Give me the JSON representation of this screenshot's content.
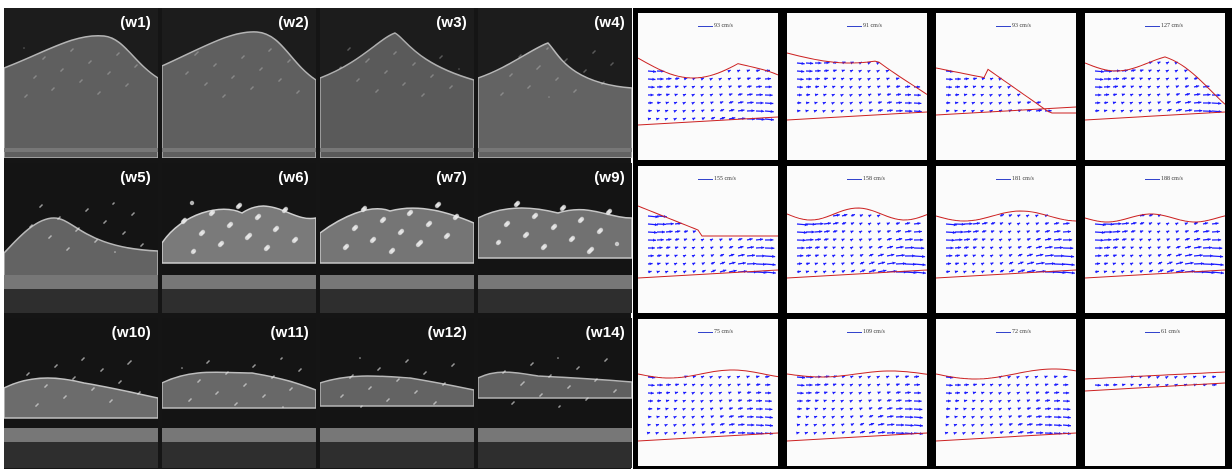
{
  "photo_panels": [
    {
      "label": "(w1)"
    },
    {
      "label": "(w2)"
    },
    {
      "label": "(w3)"
    },
    {
      "label": "(w4)"
    },
    {
      "label": "(w5)"
    },
    {
      "label": "(w6)"
    },
    {
      "label": "(w7)"
    },
    {
      "label": "(w9)"
    },
    {
      "label": "(w10)"
    },
    {
      "label": "(w11)"
    },
    {
      "label": "(w12)"
    },
    {
      "label": "(w14)"
    }
  ],
  "piv_panels": [
    {
      "scale_label": "93 cm/s"
    },
    {
      "scale_label": "91 cm/s"
    },
    {
      "scale_label": "93 cm/s"
    },
    {
      "scale_label": "127 cm/s"
    },
    {
      "scale_label": "155 cm/s"
    },
    {
      "scale_label": "158 cm/s"
    },
    {
      "scale_label": "181 cm/s"
    },
    {
      "scale_label": "188 cm/s"
    },
    {
      "scale_label": "75 cm/s"
    },
    {
      "scale_label": "109 cm/s"
    },
    {
      "scale_label": "72 cm/s"
    },
    {
      "scale_label": "61 cm/s"
    }
  ],
  "colors": {
    "photo_background": "#151515",
    "piv_background": "#000000",
    "vector_color": "#1a1aff",
    "free_surface_color": "#cc2222"
  }
}
